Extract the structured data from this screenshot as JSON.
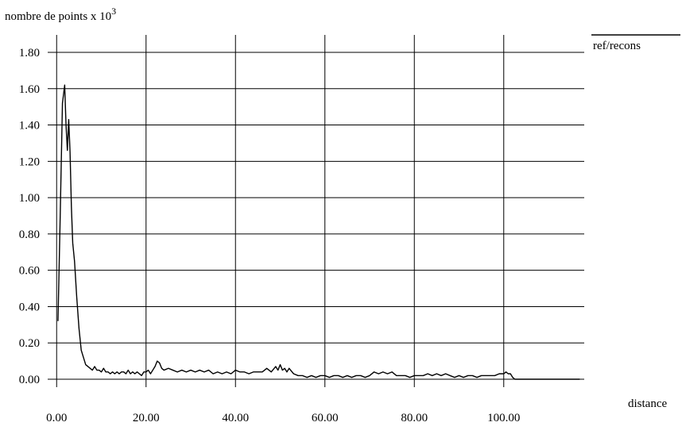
{
  "chart_data": {
    "type": "line",
    "title": "",
    "ylabel": "nombre de points x 10",
    "ylabel_superscript": "3",
    "xlabel": "distance",
    "xlim": [
      -2,
      118
    ],
    "ylim": [
      0,
      1.8
    ],
    "grid": true,
    "legend": "top-right",
    "x_ticks": [
      "0.00",
      "20.00",
      "40.00",
      "60.00",
      "80.00",
      "100.00"
    ],
    "x_tick_values": [
      0,
      20,
      40,
      60,
      80,
      100
    ],
    "y_ticks": [
      "0.00",
      "0.20",
      "0.40",
      "0.60",
      "0.80",
      "1.00",
      "1.20",
      "1.40",
      "1.60",
      "1.80"
    ],
    "y_tick_values": [
      0,
      0.2,
      0.4,
      0.6,
      0.8,
      1.0,
      1.2,
      1.4,
      1.6,
      1.8
    ],
    "series": [
      {
        "name": "ref/recons",
        "color": "#000000",
        "x": [
          0.3,
          0.8,
          1.3,
          1.8,
          2.1,
          2.4,
          2.7,
          3.0,
          3.3,
          3.6,
          4.0,
          4.5,
          5.0,
          5.5,
          6.0,
          6.5,
          7.0,
          7.5,
          8.0,
          8.5,
          9.0,
          9.5,
          10.0,
          10.5,
          11.0,
          11.5,
          12.0,
          12.5,
          13.0,
          13.5,
          14.0,
          14.5,
          15.0,
          15.5,
          16.0,
          16.5,
          17.0,
          17.5,
          18.0,
          18.5,
          19.0,
          19.5,
          20.0,
          20.5,
          21.0,
          21.5,
          22.0,
          22.5,
          23.0,
          23.5,
          24.0,
          25.0,
          26.0,
          27.0,
          28.0,
          29.0,
          30.0,
          31.0,
          32.0,
          33.0,
          34.0,
          35.0,
          36.0,
          37.0,
          38.0,
          39.0,
          40.0,
          41.0,
          42.0,
          43.0,
          44.0,
          45.0,
          46.0,
          47.0,
          48.0,
          49.0,
          49.5,
          50.0,
          50.5,
          51.0,
          51.5,
          52.0,
          53.0,
          54.0,
          55.0,
          56.0,
          57.0,
          58.0,
          59.0,
          60.0,
          61.0,
          62.0,
          63.0,
          64.0,
          65.0,
          66.0,
          67.0,
          68.0,
          69.0,
          70.0,
          71.0,
          72.0,
          73.0,
          74.0,
          75.0,
          76.0,
          77.0,
          78.0,
          79.0,
          80.0,
          81.0,
          82.0,
          83.0,
          84.0,
          85.0,
          86.0,
          87.0,
          88.0,
          89.0,
          90.0,
          91.0,
          92.0,
          93.0,
          94.0,
          95.0,
          96.0,
          97.0,
          98.0,
          99.0,
          100.0,
          100.5,
          101.0,
          101.5,
          102.0,
          102.5,
          103.0,
          104.0,
          105.0,
          106.0,
          107.0,
          108.0,
          109.0,
          110.0,
          111.0,
          112.0,
          113.0,
          114.0,
          115.0,
          116.0,
          117.0
        ],
        "y": [
          0.32,
          0.9,
          1.52,
          1.62,
          1.4,
          1.26,
          1.43,
          1.25,
          0.95,
          0.75,
          0.65,
          0.45,
          0.28,
          0.16,
          0.12,
          0.08,
          0.07,
          0.06,
          0.05,
          0.07,
          0.05,
          0.05,
          0.04,
          0.06,
          0.04,
          0.04,
          0.03,
          0.04,
          0.03,
          0.04,
          0.03,
          0.04,
          0.04,
          0.03,
          0.05,
          0.03,
          0.04,
          0.03,
          0.04,
          0.03,
          0.02,
          0.04,
          0.04,
          0.05,
          0.03,
          0.05,
          0.07,
          0.1,
          0.09,
          0.06,
          0.05,
          0.06,
          0.05,
          0.04,
          0.05,
          0.04,
          0.05,
          0.04,
          0.05,
          0.04,
          0.05,
          0.03,
          0.04,
          0.03,
          0.04,
          0.03,
          0.05,
          0.04,
          0.04,
          0.03,
          0.04,
          0.04,
          0.04,
          0.06,
          0.04,
          0.07,
          0.05,
          0.08,
          0.05,
          0.06,
          0.04,
          0.06,
          0.03,
          0.02,
          0.02,
          0.01,
          0.02,
          0.01,
          0.02,
          0.02,
          0.01,
          0.02,
          0.02,
          0.01,
          0.02,
          0.01,
          0.02,
          0.02,
          0.01,
          0.02,
          0.04,
          0.03,
          0.04,
          0.03,
          0.04,
          0.02,
          0.02,
          0.02,
          0.01,
          0.02,
          0.02,
          0.02,
          0.03,
          0.02,
          0.03,
          0.02,
          0.03,
          0.02,
          0.01,
          0.02,
          0.01,
          0.02,
          0.02,
          0.01,
          0.02,
          0.02,
          0.02,
          0.02,
          0.03,
          0.03,
          0.04,
          0.03,
          0.03,
          0.01,
          0.0,
          0.0,
          0.0,
          0.0,
          0.0,
          0.0,
          0.0,
          0.0,
          0.0,
          0.0,
          0.0,
          0.0,
          0.0,
          0.0,
          0.0,
          0.0
        ]
      }
    ]
  }
}
